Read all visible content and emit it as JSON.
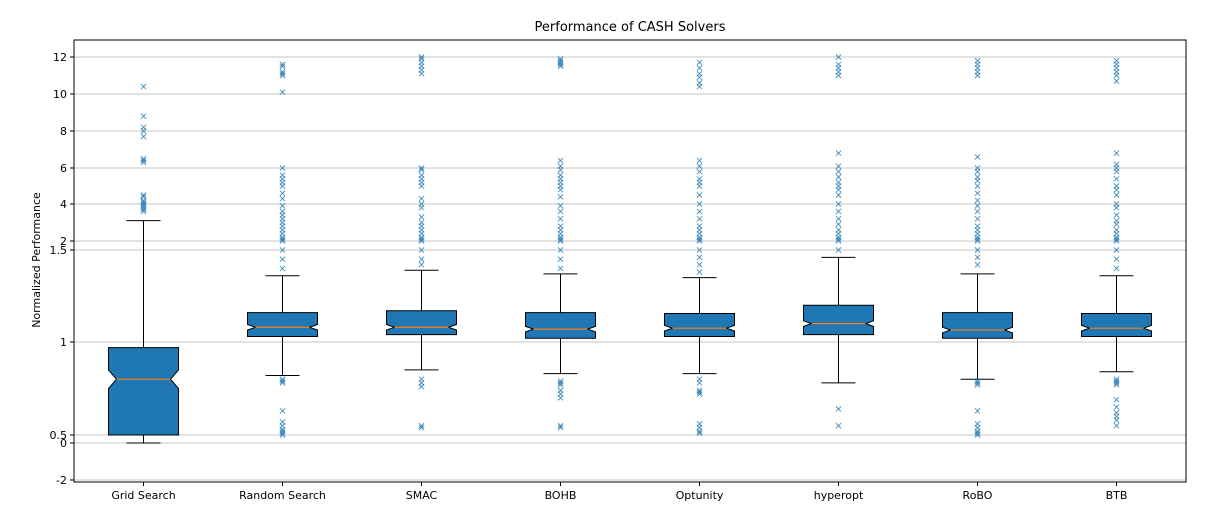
{
  "chart_data": {
    "type": "box",
    "title": "Performance of CASH Solvers",
    "xlabel": "",
    "ylabel": "Normalized Performance",
    "notched": true,
    "grid": "horizontal",
    "box_color": "#1f77b4",
    "median_color": "#ff7f0e",
    "flier_marker": "x",
    "y_axis": {
      "scale": "piecewise",
      "segments": [
        {
          "range": [
            -2,
            0
          ],
          "note": "lower linear segment"
        },
        {
          "range": [
            0.5,
            1.5
          ],
          "note": "middle linear segment"
        },
        {
          "range": [
            2,
            12
          ],
          "note": "upper linear segment"
        }
      ],
      "ticks": [
        {
          "value": -2,
          "label": "-2"
        },
        {
          "value": 0,
          "label": "0"
        },
        {
          "value": 0.5,
          "label": "0.5"
        },
        {
          "value": 1,
          "label": "1"
        },
        {
          "value": 1.5,
          "label": "1.5"
        },
        {
          "value": 2,
          "label": "2"
        },
        {
          "value": 4,
          "label": "4"
        },
        {
          "value": 6,
          "label": "6"
        },
        {
          "value": 8,
          "label": "8"
        },
        {
          "value": 10,
          "label": "10"
        },
        {
          "value": 12,
          "label": "12"
        }
      ]
    },
    "categories": [
      "Grid Search",
      "Random Search",
      "SMAC",
      "BOHB",
      "Optunity",
      "hyperopt",
      "RoBO",
      "BTB"
    ],
    "boxes": [
      {
        "name": "Grid Search",
        "whisker_low": 0.0,
        "q1": 0.5,
        "median": 0.8,
        "q3": 0.97,
        "whisker_high": 3.1,
        "notch_low": 0.75,
        "notch_high": 0.85,
        "fliers": [
          3.6,
          3.7,
          3.8,
          3.9,
          4.0,
          4.1,
          4.2,
          4.4,
          4.5,
          6.3,
          6.4,
          6.5,
          7.7,
          8.0,
          8.2,
          8.8,
          10.4
        ]
      },
      {
        "name": "Random Search",
        "whisker_low": 0.82,
        "q1": 1.03,
        "median": 1.08,
        "q3": 1.16,
        "whisker_high": 1.36,
        "notch_low": 1.065,
        "notch_high": 1.095,
        "fliers": [
          0.5,
          0.51,
          0.52,
          0.53,
          0.55,
          0.57,
          0.63,
          0.78,
          0.79,
          0.8,
          1.4,
          1.45,
          1.5,
          2.0,
          2.1,
          2.2,
          2.4,
          2.6,
          2.8,
          3.0,
          3.2,
          3.4,
          3.6,
          3.9,
          4.3,
          4.6,
          5.0,
          5.2,
          5.4,
          5.6,
          6.0,
          10.1,
          11.0,
          11.1,
          11.2,
          11.5,
          11.6
        ]
      },
      {
        "name": "SMAC",
        "whisker_low": 0.85,
        "q1": 1.04,
        "median": 1.08,
        "q3": 1.17,
        "whisker_high": 1.39,
        "notch_low": 1.065,
        "notch_high": 1.095,
        "fliers": [
          0.54,
          0.55,
          0.76,
          0.78,
          0.8,
          1.42,
          1.45,
          1.5,
          2.0,
          2.1,
          2.2,
          2.4,
          2.6,
          2.8,
          3.0,
          3.3,
          3.8,
          4.0,
          4.3,
          5.0,
          5.2,
          5.4,
          5.6,
          5.9,
          6.0,
          11.1,
          11.3,
          11.5,
          11.7,
          11.9,
          12.0
        ]
      },
      {
        "name": "BOHB",
        "whisker_low": 0.83,
        "q1": 1.02,
        "median": 1.07,
        "q3": 1.16,
        "whisker_high": 1.37,
        "notch_low": 1.055,
        "notch_high": 1.085,
        "fliers": [
          0.54,
          0.55,
          0.7,
          0.72,
          0.74,
          0.77,
          0.78,
          0.79,
          1.4,
          1.45,
          1.5,
          2.0,
          2.1,
          2.2,
          2.4,
          2.6,
          2.8,
          3.2,
          3.6,
          3.9,
          4.4,
          4.8,
          5.0,
          5.2,
          5.4,
          5.6,
          5.9,
          6.1,
          6.4,
          11.5,
          11.6,
          11.7,
          11.8,
          11.9
        ]
      },
      {
        "name": "Optunity",
        "whisker_low": 0.83,
        "q1": 1.03,
        "median": 1.075,
        "q3": 1.155,
        "whisker_high": 1.35,
        "notch_low": 1.06,
        "notch_high": 1.09,
        "fliers": [
          0.51,
          0.52,
          0.54,
          0.56,
          0.72,
          0.73,
          0.74,
          0.78,
          0.8,
          1.38,
          1.42,
          1.46,
          1.5,
          2.0,
          2.1,
          2.2,
          2.4,
          2.6,
          2.8,
          3.2,
          3.6,
          4.0,
          4.5,
          5.0,
          5.2,
          5.4,
          5.8,
          6.1,
          6.4,
          10.4,
          10.6,
          10.9,
          11.1,
          11.4,
          11.7
        ]
      },
      {
        "name": "hyperopt",
        "whisker_low": 0.78,
        "q1": 1.04,
        "median": 1.1,
        "q3": 1.2,
        "whisker_high": 1.46,
        "notch_low": 1.085,
        "notch_high": 1.115,
        "fliers": [
          0.55,
          0.64,
          1.5,
          2.0,
          2.1,
          2.2,
          2.4,
          2.6,
          2.9,
          3.2,
          3.6,
          4.0,
          4.5,
          4.8,
          5.0,
          5.2,
          5.5,
          5.8,
          6.1,
          6.8,
          11.0,
          11.2,
          11.4,
          11.6,
          12.0
        ]
      },
      {
        "name": "RoBO",
        "whisker_low": 0.8,
        "q1": 1.02,
        "median": 1.065,
        "q3": 1.16,
        "whisker_high": 1.37,
        "notch_low": 1.05,
        "notch_high": 1.08,
        "fliers": [
          0.5,
          0.51,
          0.52,
          0.54,
          0.56,
          0.63,
          0.77,
          0.78,
          0.79,
          1.42,
          1.46,
          1.5,
          2.0,
          2.1,
          2.2,
          2.4,
          2.6,
          2.8,
          3.2,
          3.6,
          3.9,
          4.2,
          4.6,
          5.0,
          5.3,
          5.5,
          5.8,
          6.0,
          6.6,
          11.0,
          11.2,
          11.4,
          11.6,
          11.8
        ]
      },
      {
        "name": "BTB",
        "whisker_low": 0.84,
        "q1": 1.03,
        "median": 1.075,
        "q3": 1.155,
        "whisker_high": 1.36,
        "notch_low": 1.06,
        "notch_high": 1.09,
        "fliers": [
          0.55,
          0.58,
          0.6,
          0.62,
          0.65,
          0.69,
          0.77,
          0.78,
          0.79,
          0.8,
          1.4,
          1.45,
          1.5,
          2.0,
          2.1,
          2.2,
          2.4,
          2.6,
          2.9,
          3.1,
          3.4,
          3.8,
          4.0,
          4.5,
          4.8,
          5.0,
          5.4,
          5.8,
          6.0,
          6.2,
          6.8,
          10.7,
          11.0,
          11.2,
          11.4,
          11.6,
          11.8
        ]
      }
    ]
  }
}
